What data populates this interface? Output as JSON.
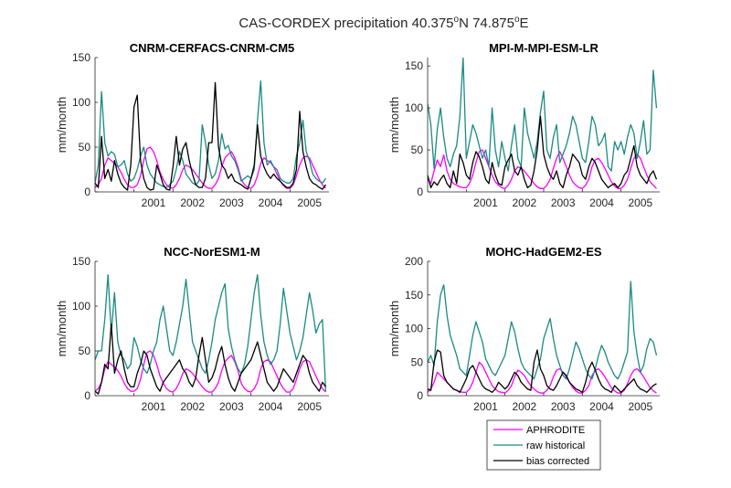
{
  "figure": {
    "title_prefix": "CAS-CORDEX precipitation 40.375",
    "title_deg1": "o",
    "title_mid": "N 74.875",
    "title_deg2": "o",
    "title_suffix": "E"
  },
  "legend": {
    "items": [
      {
        "label": "APHRODITE",
        "color": "#ff00ff"
      },
      {
        "label": "raw historical",
        "color": "#1a8a82"
      },
      {
        "label": "bias corrected",
        "color": "#000000"
      }
    ]
  },
  "chart_data": [
    {
      "type": "line",
      "title": "CNRM-CERFACS-CNRM-CM5",
      "ylabel": "mm/month",
      "xlim": [
        2000.0,
        2006.0
      ],
      "ylim": [
        0,
        150
      ],
      "yticks": [
        "0",
        "50",
        "100",
        "150"
      ],
      "xticks": [
        "2001",
        "2002",
        "2003",
        "2004",
        "2005"
      ],
      "grid": false,
      "x_start": 2000.0,
      "x_step": 0.0833333,
      "series": [
        {
          "name": "APHRODITE",
          "color": "#ff00ff",
          "values": [
            5,
            8,
            15,
            30,
            38,
            35,
            32,
            28,
            22,
            14,
            8,
            5,
            5,
            8,
            18,
            35,
            48,
            50,
            45,
            35,
            22,
            14,
            8,
            5,
            4,
            8,
            15,
            25,
            30,
            28,
            25,
            20,
            15,
            10,
            6,
            4,
            4,
            8,
            15,
            28,
            38,
            42,
            45,
            38,
            28,
            14,
            8,
            5,
            4,
            8,
            18,
            32,
            38,
            35,
            33,
            28,
            20,
            12,
            7,
            4,
            4,
            8,
            18,
            30,
            38,
            40,
            38,
            30,
            22,
            14,
            8,
            4
          ]
        },
        {
          "name": "raw historical",
          "color": "#1a8a82",
          "values": [
            10,
            30,
            112,
            55,
            40,
            45,
            42,
            28,
            30,
            35,
            20,
            12,
            15,
            25,
            40,
            50,
            30,
            20,
            15,
            10,
            8,
            6,
            5,
            8,
            12,
            25,
            45,
            35,
            20,
            15,
            10,
            8,
            12,
            75,
            55,
            30,
            15,
            20,
            35,
            65,
            48,
            52,
            40,
            35,
            25,
            12,
            15,
            18,
            15,
            25,
            80,
            124,
            55,
            30,
            35,
            28,
            25,
            15,
            12,
            10,
            10,
            15,
            40,
            55,
            80,
            45,
            35,
            20,
            15,
            12,
            10,
            15
          ]
        },
        {
          "name": "bias corrected",
          "color": "#000000",
          "values": [
            10,
            5,
            62,
            15,
            25,
            12,
            35,
            20,
            10,
            5,
            2,
            30,
            95,
            108,
            35,
            15,
            5,
            2,
            3,
            30,
            20,
            8,
            3,
            2,
            28,
            62,
            30,
            48,
            55,
            35,
            20,
            8,
            5,
            5,
            15,
            55,
            55,
            122,
            50,
            30,
            25,
            15,
            20,
            12,
            10,
            8,
            5,
            3,
            15,
            30,
            75,
            40,
            28,
            20,
            15,
            20,
            15,
            12,
            8,
            5,
            5,
            10,
            25,
            90,
            45,
            28,
            15,
            10,
            8,
            5,
            3,
            8
          ]
        }
      ]
    },
    {
      "type": "line",
      "title": "MPI-M-MPI-ESM-LR",
      "ylabel": "mm/month",
      "xlim": [
        2000.0,
        2006.0
      ],
      "ylim": [
        0,
        160
      ],
      "yticks": [
        "0",
        "50",
        "100",
        "150"
      ],
      "xticks": [
        "2001",
        "2002",
        "2003",
        "2004",
        "2005"
      ],
      "grid": false,
      "x_start": 2000.0,
      "x_step": 0.0833333,
      "series": [
        {
          "name": "APHRODITE",
          "color": "#ff00ff",
          "values": [
            15,
            10,
            25,
            38,
            30,
            44,
            25,
            15,
            10,
            8,
            6,
            5,
            5,
            10,
            20,
            35,
            48,
            50,
            40,
            30,
            20,
            12,
            8,
            5,
            4,
            8,
            15,
            25,
            30,
            28,
            25,
            20,
            15,
            10,
            6,
            4,
            4,
            8,
            15,
            28,
            40,
            48,
            40,
            30,
            20,
            12,
            8,
            5,
            4,
            8,
            15,
            30,
            38,
            40,
            35,
            28,
            20,
            12,
            7,
            4,
            4,
            8,
            15,
            28,
            40,
            45,
            40,
            30,
            20,
            12,
            8,
            4
          ]
        },
        {
          "name": "raw historical",
          "color": "#1a8a82",
          "values": [
            105,
            80,
            28,
            75,
            100,
            65,
            40,
            30,
            45,
            55,
            90,
            160,
            40,
            60,
            80,
            70,
            55,
            40,
            50,
            30,
            100,
            50,
            30,
            60,
            40,
            25,
            55,
            80,
            40,
            30,
            100,
            70,
            55,
            40,
            60,
            95,
            120,
            50,
            40,
            65,
            80,
            35,
            45,
            55,
            70,
            90,
            80,
            60,
            40,
            35,
            60,
            90,
            80,
            55,
            60,
            70,
            30,
            25,
            60,
            50,
            60,
            45,
            65,
            80,
            70,
            40,
            60,
            85,
            45,
            50,
            145,
            100
          ]
        },
        {
          "name": "bias corrected",
          "color": "#000000",
          "values": [
            20,
            5,
            12,
            8,
            15,
            20,
            10,
            5,
            25,
            10,
            45,
            35,
            20,
            15,
            35,
            48,
            42,
            30,
            15,
            10,
            35,
            20,
            10,
            8,
            30,
            38,
            45,
            25,
            20,
            30,
            15,
            5,
            8,
            25,
            50,
            90,
            45,
            30,
            20,
            15,
            25,
            10,
            5,
            20,
            30,
            45,
            40,
            35,
            20,
            15,
            30,
            40,
            35,
            25,
            15,
            10,
            5,
            8,
            10,
            5,
            10,
            20,
            25,
            40,
            55,
            30,
            20,
            15,
            10,
            20,
            25,
            15
          ]
        }
      ]
    },
    {
      "type": "line",
      "title": "NCC-NorESM1-M",
      "ylabel": "mm/month",
      "xlim": [
        2000.0,
        2006.0
      ],
      "ylim": [
        0,
        150
      ],
      "yticks": [
        "0",
        "50",
        "100",
        "150"
      ],
      "xticks": [
        "2001",
        "2002",
        "2003",
        "2004",
        "2005"
      ],
      "grid": false,
      "x_start": 2000.0,
      "x_step": 0.0833333,
      "series": [
        {
          "name": "APHRODITE",
          "color": "#ff00ff",
          "values": [
            5,
            8,
            15,
            30,
            38,
            35,
            32,
            28,
            22,
            14,
            8,
            5,
            5,
            8,
            18,
            35,
            48,
            50,
            45,
            35,
            22,
            14,
            8,
            5,
            4,
            8,
            15,
            25,
            30,
            28,
            25,
            20,
            15,
            10,
            6,
            4,
            4,
            8,
            15,
            28,
            38,
            42,
            45,
            38,
            28,
            14,
            8,
            5,
            4,
            8,
            15,
            30,
            38,
            40,
            38,
            30,
            22,
            14,
            8,
            4,
            4,
            8,
            18,
            30,
            38,
            40,
            38,
            30,
            22,
            14,
            8,
            4
          ]
        },
        {
          "name": "raw historical",
          "color": "#1a8a82",
          "values": [
            40,
            50,
            50,
            85,
            135,
            70,
            115,
            60,
            45,
            40,
            30,
            35,
            65,
            55,
            40,
            30,
            25,
            35,
            50,
            60,
            85,
            100,
            75,
            50,
            45,
            60,
            80,
            100,
            130,
            95,
            60,
            50,
            40,
            30,
            25,
            40,
            60,
            85,
            100,
            115,
            125,
            75,
            55,
            40,
            30,
            25,
            35,
            55,
            85,
            115,
            135,
            90,
            60,
            45,
            35,
            40,
            50,
            80,
            120,
            95,
            70,
            55,
            40,
            50,
            65,
            90,
            115,
            95,
            70,
            80,
            85,
            5
          ]
        },
        {
          "name": "bias corrected",
          "color": "#000000",
          "values": [
            5,
            2,
            15,
            35,
            30,
            80,
            25,
            40,
            50,
            30,
            15,
            10,
            10,
            25,
            35,
            50,
            45,
            30,
            20,
            10,
            5,
            15,
            20,
            25,
            30,
            35,
            40,
            30,
            25,
            15,
            10,
            20,
            45,
            65,
            40,
            15,
            20,
            30,
            45,
            55,
            35,
            20,
            10,
            5,
            15,
            25,
            30,
            35,
            40,
            50,
            60,
            45,
            30,
            15,
            10,
            5,
            10,
            20,
            30,
            25,
            20,
            15,
            25,
            35,
            45,
            40,
            25,
            15,
            10,
            5,
            15,
            10
          ]
        }
      ]
    },
    {
      "type": "line",
      "title": "MOHC-HadGEM2-ES",
      "ylabel": "mm/month",
      "xlim": [
        2000.0,
        2006.0
      ],
      "ylim": [
        0,
        200
      ],
      "yticks": [
        "0",
        "50",
        "100",
        "150",
        "200"
      ],
      "xticks": [
        "2001",
        "2002",
        "2003",
        "2004",
        "2005"
      ],
      "grid": false,
      "x_start": 2000.0,
      "x_step": 0.0833333,
      "series": [
        {
          "name": "APHRODITE",
          "color": "#ff00ff",
          "values": [
            5,
            10,
            20,
            35,
            30,
            25,
            20,
            15,
            10,
            8,
            6,
            5,
            5,
            10,
            20,
            35,
            50,
            45,
            35,
            25,
            15,
            10,
            6,
            5,
            4,
            8,
            15,
            28,
            38,
            35,
            30,
            22,
            15,
            10,
            6,
            4,
            4,
            8,
            15,
            28,
            38,
            40,
            35,
            28,
            20,
            12,
            7,
            4,
            4,
            8,
            15,
            30,
            38,
            40,
            35,
            28,
            20,
            12,
            7,
            4,
            4,
            8,
            18,
            30,
            38,
            40,
            35,
            28,
            20,
            12,
            7,
            4
          ]
        },
        {
          "name": "raw historical",
          "color": "#1a8a82",
          "values": [
            50,
            60,
            45,
            110,
            150,
            165,
            120,
            90,
            75,
            60,
            40,
            35,
            30,
            60,
            90,
            110,
            95,
            80,
            55,
            45,
            35,
            30,
            40,
            50,
            60,
            85,
            110,
            95,
            70,
            50,
            40,
            35,
            30,
            25,
            40,
            55,
            85,
            100,
            115,
            85,
            60,
            45,
            30,
            25,
            40,
            60,
            80,
            70,
            55,
            40,
            30,
            25,
            40,
            60,
            75,
            65,
            50,
            40,
            30,
            25,
            35,
            50,
            65,
            170,
            95,
            60,
            35,
            45,
            70,
            85,
            80,
            60
          ]
        },
        {
          "name": "bias corrected",
          "color": "#000000",
          "values": [
            10,
            8,
            50,
            68,
            65,
            30,
            20,
            15,
            10,
            8,
            5,
            15,
            25,
            40,
            45,
            35,
            25,
            15,
            10,
            8,
            5,
            10,
            20,
            15,
            10,
            15,
            25,
            35,
            30,
            20,
            15,
            10,
            8,
            50,
            68,
            40,
            30,
            15,
            10,
            8,
            15,
            25,
            35,
            30,
            20,
            15,
            10,
            8,
            5,
            20,
            40,
            50,
            38,
            25,
            15,
            10,
            8,
            5,
            15,
            10,
            5,
            10,
            15,
            20,
            25,
            15,
            10,
            8,
            5,
            10,
            15,
            18
          ]
        }
      ]
    }
  ]
}
